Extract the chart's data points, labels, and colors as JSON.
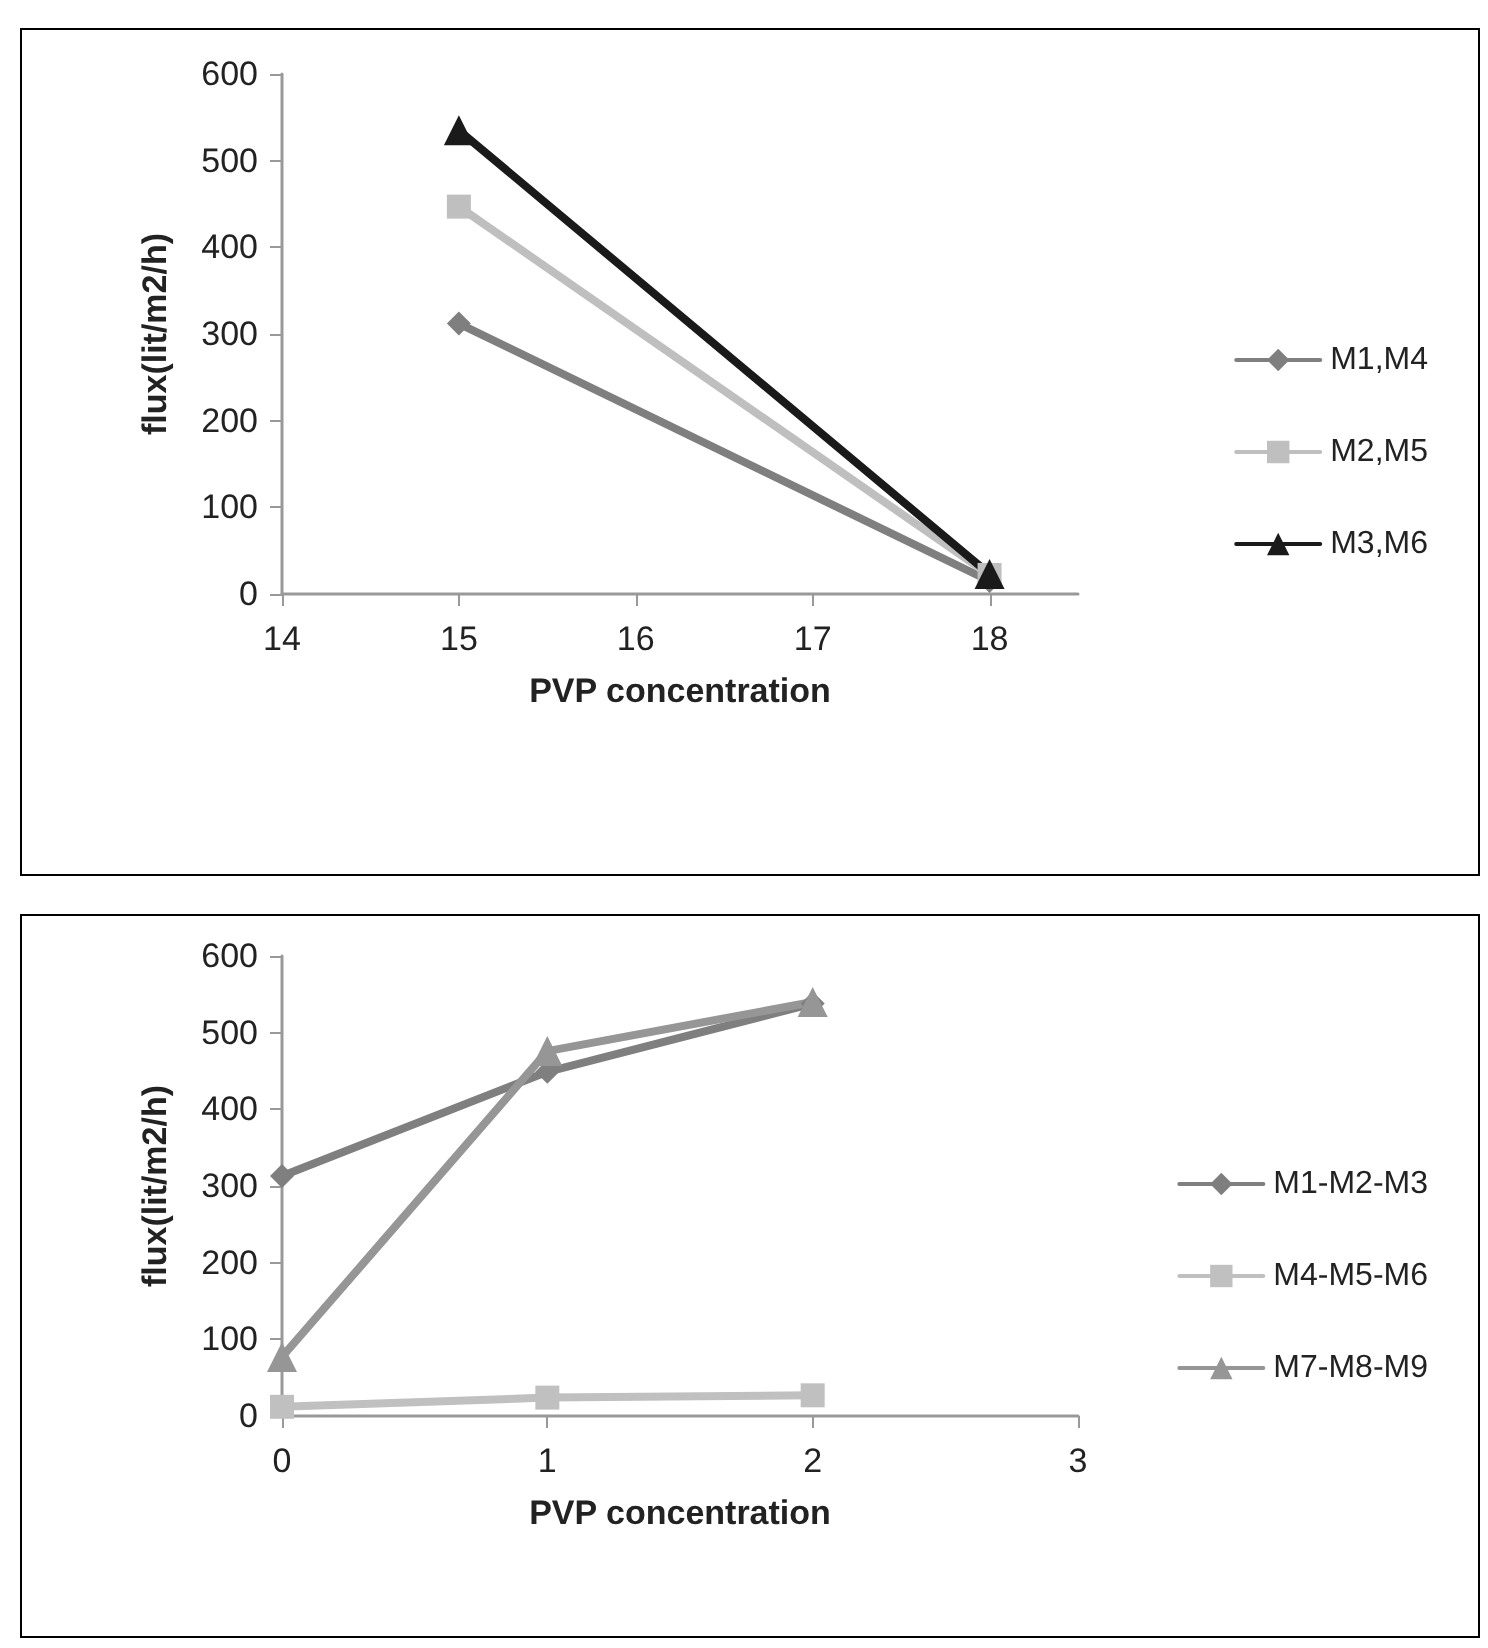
{
  "chart_data": [
    {
      "type": "line",
      "xlabel": "PVP concentration",
      "ylabel": "flux(lit/m2/h)",
      "x": [
        15,
        18
      ],
      "xlim": [
        14,
        18.5
      ],
      "xticks": [
        14,
        15,
        16,
        17,
        18
      ],
      "ylim": [
        0,
        600
      ],
      "yticks": [
        0,
        100,
        200,
        300,
        400,
        500,
        600
      ],
      "grid": false,
      "legend": "right",
      "series": [
        {
          "name": "M1,M4",
          "color": "#7f7f7f",
          "marker": "diamond",
          "values": [
            312,
            15
          ]
        },
        {
          "name": "M2,M5",
          "color": "#bfbfbf",
          "marker": "square",
          "values": [
            447,
            22
          ]
        },
        {
          "name": "M3,M6",
          "color": "#1a1a1a",
          "marker": "triangle",
          "values": [
            535,
            23
          ]
        }
      ]
    },
    {
      "type": "line",
      "xlabel": "PVP concentration",
      "ylabel": "flux(lit/m2/h)",
      "x": [
        0,
        1,
        2
      ],
      "xlim": [
        0,
        3
      ],
      "xticks": [
        0,
        1,
        2,
        3
      ],
      "ylim": [
        0,
        600
      ],
      "yticks": [
        0,
        100,
        200,
        300,
        400,
        500,
        600
      ],
      "grid": false,
      "legend": "right",
      "series": [
        {
          "name": "M1-M2-M3",
          "color": "#7f7f7f",
          "marker": "diamond",
          "values": [
            313,
            449,
            538
          ]
        },
        {
          "name": "M4-M5-M6",
          "color": "#c0c0c0",
          "marker": "square",
          "values": [
            12,
            24,
            27
          ]
        },
        {
          "name": "M7-M8-M9",
          "color": "#969696",
          "marker": "triangle",
          "values": [
            77,
            476,
            540
          ]
        }
      ]
    }
  ]
}
